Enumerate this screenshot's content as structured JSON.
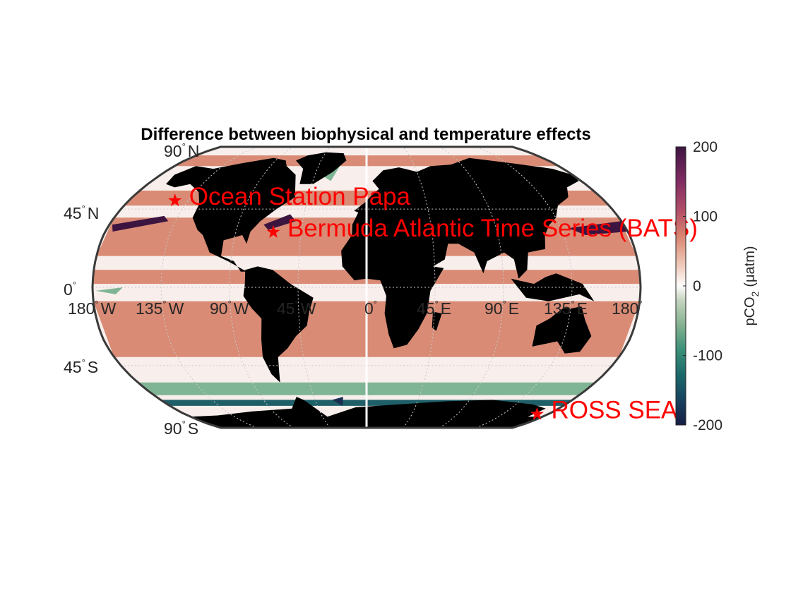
{
  "title": "Difference between biophysical and temperature effects",
  "map": {
    "projection": "robinson",
    "land_color": "#000000",
    "ocean_zero_color": "#f8efec",
    "lat_labels": [
      {
        "lat": 90,
        "num": "90",
        "hemi": "N"
      },
      {
        "lat": 45,
        "num": "45",
        "hemi": "N"
      },
      {
        "lat": 0,
        "num": "0",
        "hemi": ""
      },
      {
        "lat": -45,
        "num": "45",
        "hemi": "S"
      },
      {
        "lat": -90,
        "num": "90",
        "hemi": "S"
      }
    ],
    "lon_labels": [
      {
        "lon": -180,
        "num": "180",
        "hemi": "W"
      },
      {
        "lon": -135,
        "num": "135",
        "hemi": "W"
      },
      {
        "lon": -90,
        "num": "90",
        "hemi": "W"
      },
      {
        "lon": -45,
        "num": "45",
        "hemi": "W"
      },
      {
        "lon": 0,
        "num": "0",
        "hemi": ""
      },
      {
        "lon": 45,
        "num": "45",
        "hemi": "E"
      },
      {
        "lon": 90,
        "num": "90",
        "hemi": "E"
      },
      {
        "lon": 135,
        "num": "135",
        "hemi": "E"
      },
      {
        "lon": 180,
        "num": "180",
        "hemi": ""
      }
    ],
    "stations": [
      {
        "name": "Ocean Station Papa",
        "lat": 50,
        "lon": -145
      },
      {
        "name": "Bermuda Atlantic Time Series (BATS)",
        "lat": 31.7,
        "lon": -64.2
      },
      {
        "name": "ROSS SEA",
        "lat": -76,
        "lon": 169
      }
    ]
  },
  "colorbar": {
    "label_prefix": "pCO",
    "label_sub": "2",
    "label_unit": "(μatm)",
    "min": -200,
    "max": 200,
    "ticks": [
      "200",
      "100",
      "0",
      "-100",
      "-200"
    ],
    "colormap_stops": [
      "#151d44",
      "#17425f",
      "#1b6969",
      "#3a9078",
      "#84b191",
      "#c5d5c0",
      "#fefcfb",
      "#ecc0ae",
      "#d9846f",
      "#b34e68",
      "#7f2b62",
      "#3e1541"
    ]
  }
}
